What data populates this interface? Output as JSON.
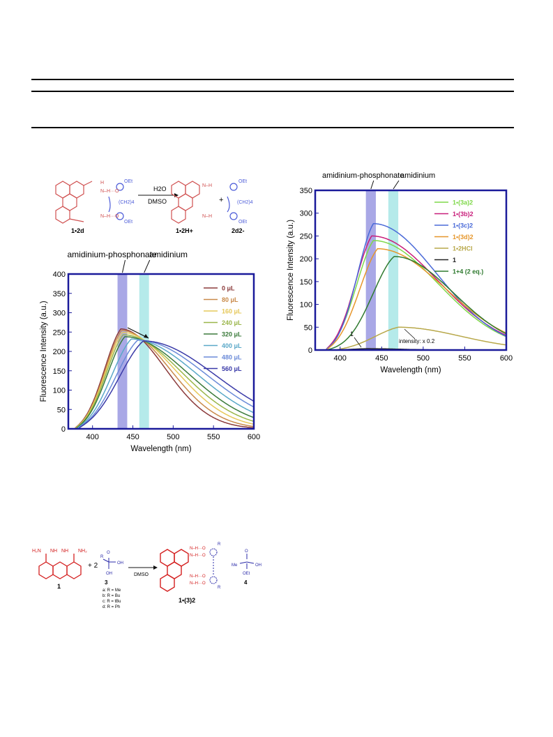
{
  "scheme_top": {
    "reactant_label": "1•2d",
    "reagent_top": "H2O",
    "reagent_bottom": "DMSO",
    "product1_label": "1•2H+",
    "product2_label": "2d2-",
    "linker": "(CH2)4",
    "oet": "OEt",
    "plus": "+"
  },
  "chart_data": [
    {
      "type": "line",
      "title": "",
      "xlabel": "Wavelength (nm)",
      "ylabel": "Fluorescence Intensity (a.u.)",
      "xlim": [
        370,
        600
      ],
      "ylim": [
        0,
        400
      ],
      "x_ticks": [
        "400",
        "450",
        "500",
        "550",
        "600"
      ],
      "y_ticks": [
        "0",
        "50",
        "100",
        "150",
        "200",
        "250",
        "300",
        "350",
        "400"
      ],
      "band_labels": [
        "amidinium-phosphonate",
        "amidinium"
      ],
      "bands": [
        {
          "from": 431,
          "to": 443,
          "color": "#a9a8e6"
        },
        {
          "from": 458,
          "to": 470,
          "color": "#b5eaea"
        }
      ],
      "legend_position": "right",
      "series": [
        {
          "name": "0 μL",
          "color": "#8b3a3a",
          "peak_x": 435,
          "peak_y": 258,
          "w_left": 28,
          "w_right": 55,
          "start_x": 378
        },
        {
          "name": "80 μL",
          "color": "#c98a4a",
          "peak_x": 436,
          "peak_y": 254,
          "w_left": 28,
          "w_right": 60,
          "start_x": 378
        },
        {
          "name": "160 μL",
          "color": "#e6c85a",
          "peak_x": 437,
          "peak_y": 249,
          "w_left": 29,
          "w_right": 66,
          "start_x": 379
        },
        {
          "name": "240 μL",
          "color": "#9ab64a",
          "peak_x": 438,
          "peak_y": 243,
          "w_left": 29,
          "w_right": 72,
          "start_x": 379
        },
        {
          "name": "320 μL",
          "color": "#3a7a3a",
          "peak_x": 440,
          "peak_y": 238,
          "w_left": 30,
          "w_right": 78,
          "start_x": 380
        },
        {
          "name": "400 μL",
          "color": "#5aa8c8",
          "peak_x": 448,
          "peak_y": 232,
          "w_left": 34,
          "w_right": 82,
          "start_x": 381
        },
        {
          "name": "480 μL",
          "color": "#6a8ad8",
          "peak_x": 456,
          "peak_y": 229,
          "w_left": 38,
          "w_right": 86,
          "start_x": 382
        },
        {
          "name": "560 μL",
          "color": "#3a3aa8",
          "peak_x": 463,
          "peak_y": 227,
          "w_left": 42,
          "w_right": 90,
          "start_x": 383
        }
      ]
    },
    {
      "type": "line",
      "title": "",
      "xlabel": "Wavelength (nm)",
      "ylabel": "Fluorescence Intensity (a.u.)",
      "xlim": [
        370,
        600
      ],
      "ylim": [
        0,
        350
      ],
      "x_ticks": [
        "400",
        "450",
        "500",
        "550",
        "600"
      ],
      "y_ticks": [
        "0",
        "50",
        "100",
        "150",
        "200",
        "250",
        "300",
        "350"
      ],
      "band_labels": [
        "amidinium-phosphonate",
        "amidinium"
      ],
      "bands": [
        {
          "from": 431,
          "to": 443,
          "color": "#a9a8e6"
        },
        {
          "from": 458,
          "to": 470,
          "color": "#b5eaea"
        }
      ],
      "annotations": [
        "intensity: x 0.2",
        "1"
      ],
      "legend_position": "right",
      "series": [
        {
          "name": "1•(3a)2",
          "color": "#7fd84a",
          "peak_x": 440,
          "peak_y": 240,
          "w_left": 28,
          "w_right": 78,
          "start_x": 383
        },
        {
          "name": "1•(3b)2",
          "color": "#c81d7a",
          "peak_x": 438,
          "peak_y": 250,
          "w_left": 27,
          "w_right": 80,
          "start_x": 383
        },
        {
          "name": "1•(3c)2",
          "color": "#4a6ad8",
          "peak_x": 440,
          "peak_y": 277,
          "w_left": 26,
          "w_right": 76,
          "start_x": 383
        },
        {
          "name": "1•(3d)2",
          "color": "#e6962a",
          "peak_x": 445,
          "peak_y": 222,
          "w_left": 30,
          "w_right": 82,
          "start_x": 384
        },
        {
          "name": "1•2HCl",
          "color": "#b8a84a",
          "peak_x": 470,
          "peak_y": 50,
          "w_left": 40,
          "w_right": 75,
          "start_x": 395
        },
        {
          "name": "1",
          "color": "#222222",
          "peak_x": 432,
          "peak_y": 3,
          "w_left": 25,
          "w_right": 40,
          "start_x": 390
        },
        {
          "name": "1+4 (2 eq.)",
          "color": "#2f7a2f",
          "peak_x": 465,
          "peak_y": 205,
          "w_left": 34,
          "w_right": 72,
          "start_x": 385
        }
      ]
    }
  ],
  "scheme_bottom": {
    "compound1": "1",
    "plus": "+ 2",
    "compound3": "3",
    "variants": [
      "a: R = Me",
      "b: R = Bu",
      "c: R = tBu",
      "d: R = Ph"
    ],
    "solvent": "DMSO",
    "product_label": "1•(3)2",
    "compound4": "4",
    "me": "Me",
    "oet": "OEt",
    "oh": "OH",
    "r": "R"
  }
}
